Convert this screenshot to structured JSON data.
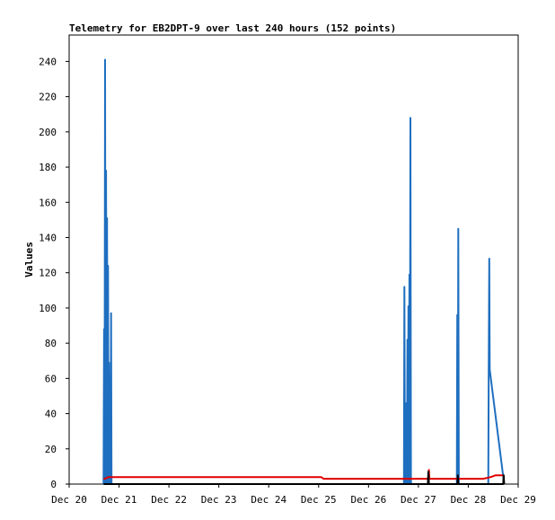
{
  "chart_data": {
    "type": "line",
    "title": "Telemetry for EB2DPT-9 over last 240 hours (152 points)",
    "xlabel": "",
    "ylabel": "Values",
    "xlim": [
      0,
      9
    ],
    "ylim": [
      0,
      255
    ],
    "yticks": [
      0,
      20,
      40,
      60,
      80,
      100,
      120,
      140,
      160,
      180,
      200,
      220,
      240
    ],
    "xticks": [
      {
        "x": 0,
        "label": "Dec 20"
      },
      {
        "x": 1,
        "label": "Dec 21"
      },
      {
        "x": 2,
        "label": "Dec 22"
      },
      {
        "x": 3,
        "label": "Dec 23"
      },
      {
        "x": 4,
        "label": "Dec 24"
      },
      {
        "x": 5,
        "label": "Dec 25"
      },
      {
        "x": 6,
        "label": "Dec 26"
      },
      {
        "x": 7,
        "label": "Dec 27"
      },
      {
        "x": 8,
        "label": "Dec 28"
      },
      {
        "x": 9,
        "label": "Dec 29"
      }
    ],
    "grid": false,
    "legend": "none",
    "series": [
      {
        "color": "#1f6fc0",
        "points": [
          [
            0.69,
            0
          ],
          [
            0.7,
            88
          ],
          [
            0.71,
            0
          ],
          [
            0.72,
            241
          ],
          [
            0.73,
            0
          ],
          [
            0.74,
            178
          ],
          [
            0.75,
            0
          ],
          [
            0.76,
            151
          ],
          [
            0.77,
            0
          ],
          [
            0.78,
            124
          ],
          [
            0.79,
            0
          ],
          [
            0.8,
            69
          ],
          [
            0.81,
            0
          ],
          [
            0.82,
            42
          ],
          [
            0.83,
            0
          ],
          [
            0.84,
            97
          ],
          [
            0.85,
            0
          ],
          [
            6.71,
            0
          ],
          [
            6.72,
            112
          ],
          [
            6.73,
            0
          ],
          [
            6.74,
            28
          ],
          [
            6.75,
            0
          ],
          [
            6.76,
            46
          ],
          [
            6.77,
            0
          ],
          [
            6.78,
            82
          ],
          [
            6.79,
            0
          ],
          [
            6.8,
            101
          ],
          [
            6.81,
            0
          ],
          [
            6.82,
            119
          ],
          [
            6.83,
            0
          ],
          [
            6.84,
            208
          ],
          [
            6.85,
            0
          ],
          [
            7.77,
            0
          ],
          [
            7.78,
            96
          ],
          [
            7.79,
            0
          ],
          [
            7.8,
            145
          ],
          [
            7.81,
            0
          ],
          [
            8.4,
            0
          ],
          [
            8.41,
            64
          ],
          [
            8.42,
            128
          ],
          [
            8.43,
            65
          ],
          [
            8.72,
            0
          ]
        ]
      },
      {
        "color": "#e00000",
        "points": [
          [
            0.69,
            3
          ],
          [
            0.72,
            3
          ],
          [
            0.78,
            4
          ],
          [
            2.2,
            4
          ],
          [
            2.25,
            4
          ],
          [
            3.5,
            4
          ],
          [
            4.0,
            4
          ],
          [
            5.05,
            4
          ],
          [
            5.1,
            3
          ],
          [
            6.6,
            3
          ],
          [
            6.75,
            3
          ],
          [
            6.9,
            3
          ],
          [
            7.0,
            3
          ],
          [
            7.15,
            3
          ],
          [
            7.2,
            3
          ],
          [
            7.21,
            8
          ],
          [
            7.22,
            3
          ],
          [
            7.25,
            3
          ],
          [
            7.78,
            3
          ],
          [
            8.0,
            3
          ],
          [
            8.3,
            3
          ],
          [
            8.45,
            4
          ],
          [
            8.55,
            5
          ],
          [
            8.72,
            5
          ]
        ]
      },
      {
        "color": "#000000",
        "points": [
          [
            0.69,
            0
          ],
          [
            2.0,
            0
          ],
          [
            4.0,
            0
          ],
          [
            6.0,
            0
          ],
          [
            7.19,
            0
          ],
          [
            7.2,
            7
          ],
          [
            7.21,
            0
          ],
          [
            7.78,
            0
          ],
          [
            7.79,
            5
          ],
          [
            7.8,
            0
          ],
          [
            8.0,
            0
          ],
          [
            8.7,
            0
          ],
          [
            8.71,
            5
          ],
          [
            8.72,
            0
          ]
        ]
      }
    ]
  }
}
